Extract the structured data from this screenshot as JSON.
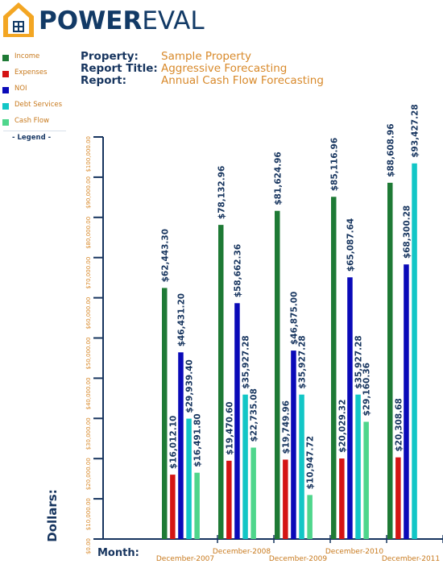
{
  "brand": {
    "name_part1": "POWER",
    "name_part2": "EVAL"
  },
  "legend": {
    "title": "- Legend -",
    "items": [
      {
        "label": "Income",
        "color": "#1e7a35"
      },
      {
        "label": "Expenses",
        "color": "#d41414"
      },
      {
        "label": "NOI",
        "color": "#0a0ab8"
      },
      {
        "label": "Debt Services",
        "color": "#12c6c6"
      },
      {
        "label": "Cash Flow",
        "color": "#4fd68c"
      }
    ]
  },
  "report_info": {
    "property_label": "Property:",
    "property_value": "Sample Property",
    "title_label": "Report Title:",
    "title_value": "Aggressive Forecasting",
    "report_label": "Report:",
    "report_value": "Annual Cash Flow Forecasting"
  },
  "chart_data": {
    "type": "bar",
    "xlabel": "Month:",
    "ylabel": "Dollars:",
    "ylim": [
      0,
      100000
    ],
    "yticks": [
      0,
      10000,
      20000,
      30000,
      40000,
      50000,
      60000,
      70000,
      80000,
      90000,
      100000
    ],
    "ytick_labels": [
      "$0.00",
      "$10,000.00",
      "$20,000.00",
      "$30,000.00",
      "$40,000.00",
      "$50,000.00",
      "$60,000.00",
      "$70,000.00",
      "$80,000.00",
      "$90,000.00",
      "$100,000.00"
    ],
    "categories": [
      "December-2007",
      "December-2008",
      "December-2009",
      "December-2010",
      "December-2011"
    ],
    "series": [
      {
        "name": "Income",
        "color": "#1e7a35",
        "values": [
          62443.3,
          78132.96,
          81624.96,
          85116.96,
          88608.96
        ],
        "labels": [
          "$62,443.30",
          "$78,132.96",
          "$81,624.96",
          "$85,116.96",
          "$88,608.96"
        ]
      },
      {
        "name": "Expenses",
        "color": "#d41414",
        "values": [
          16012.1,
          19470.6,
          19749.96,
          20029.32,
          20308.68
        ],
        "labels": [
          "$16,012.10",
          "$19,470.60",
          "$19,749.96",
          "$20,029.32",
          "$20,308.68"
        ]
      },
      {
        "name": "NOI",
        "color": "#0a0ab8",
        "values": [
          46431.2,
          58662.36,
          46875.0,
          65087.64,
          68300.28
        ],
        "labels": [
          "$46,431.20",
          "$58,662.36",
          "$46,875.00",
          "$65,087.64",
          "$68,300.28"
        ]
      },
      {
        "name": "Debt Services",
        "color": "#12c6c6",
        "values": [
          29939.4,
          35927.28,
          35927.28,
          35927.28,
          93427.28
        ],
        "labels": [
          "$29,939.40",
          "$35,927.28",
          "$35,927.28",
          "$35,927.28",
          "$93,427.28"
        ]
      },
      {
        "name": "Cash Flow",
        "color": "#4fd68c",
        "values": [
          16491.8,
          22735.08,
          10947.72,
          29160.36,
          null
        ],
        "labels": [
          "$16,491.80",
          "$22,735.08",
          "$10,947.72",
          "$29,160.36",
          null
        ]
      }
    ]
  }
}
